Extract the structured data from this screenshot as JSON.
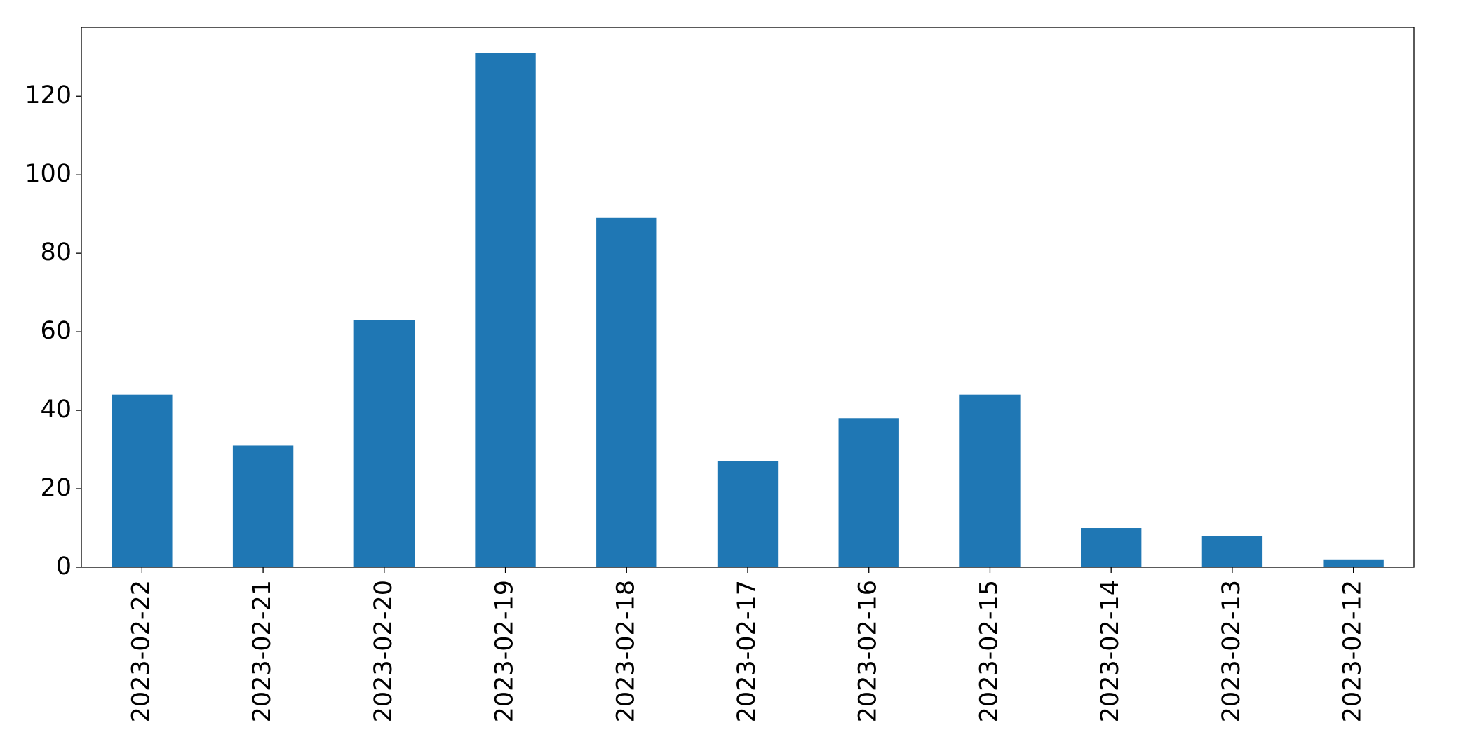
{
  "chart_data": {
    "type": "bar",
    "categories": [
      "2023-02-22",
      "2023-02-21",
      "2023-02-20",
      "2023-02-19",
      "2023-02-18",
      "2023-02-17",
      "2023-02-16",
      "2023-02-15",
      "2023-02-14",
      "2023-02-13",
      "2023-02-12"
    ],
    "values": [
      44,
      31,
      63,
      131,
      89,
      27,
      38,
      44,
      10,
      8,
      2
    ],
    "color": "#1f77b4",
    "ylim": [
      0,
      137.55
    ],
    "yticks": [
      0,
      20,
      40,
      60,
      80,
      100,
      120
    ],
    "grid": false
  }
}
